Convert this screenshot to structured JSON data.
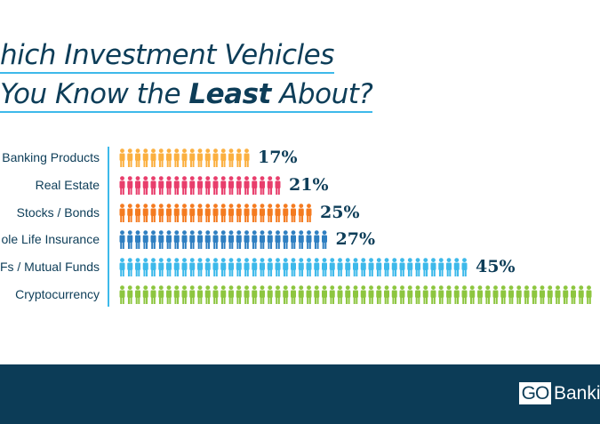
{
  "title": {
    "line1": "hich Investment Vehicles",
    "line2_pre": "You Know the ",
    "line2_bold": "Least",
    "line2_post": " About?"
  },
  "logo": {
    "go": "GO",
    "rest": "Banki"
  },
  "chart_data": {
    "type": "bar",
    "orientation": "horizontal",
    "style": "pictogram (one person icon per percent)",
    "categories": [
      "Banking Products",
      "Real Estate",
      "Stocks / Bonds",
      "ole Life Insurance",
      "Fs / Mutual Funds",
      "Cryptocurrency"
    ],
    "values": [
      17,
      21,
      25,
      27,
      45,
      null
    ],
    "labels": [
      "17%",
      "21%",
      "25%",
      "27%",
      "45%",
      ""
    ],
    "colors": [
      "#fbb040",
      "#e83e6c",
      "#f47b20",
      "#2f7fc1",
      "#3db9ea",
      "#8dc63f"
    ]
  }
}
